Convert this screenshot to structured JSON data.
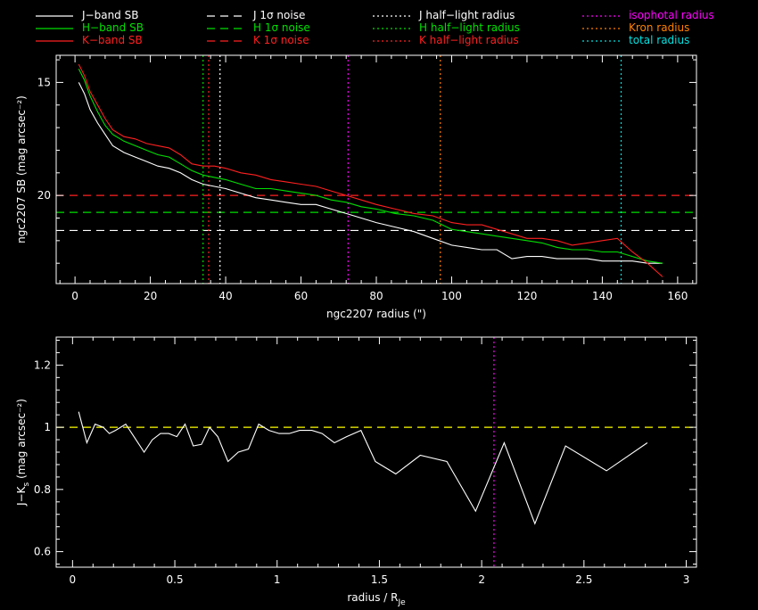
{
  "colors": {
    "background": "#000000",
    "axes": "#ffffff",
    "J": "#ffffff",
    "H": "#00e000",
    "K": "#ff2020",
    "yellow": "#ffff00",
    "magenta": "#ff00ff",
    "orange": "#ff8000",
    "cyan": "#00e0e0"
  },
  "legend": [
    {
      "label": "J−band SB",
      "color": "#ffffff",
      "style": "solid"
    },
    {
      "label": "H−band SB",
      "color": "#00e000",
      "style": "solid"
    },
    {
      "label": "K−band SB",
      "color": "#ff2020",
      "style": "solid"
    },
    {
      "label": "J 1σ noise",
      "color": "#ffffff",
      "style": "dashed"
    },
    {
      "label": "H 1σ noise",
      "color": "#00e000",
      "style": "dashed"
    },
    {
      "label": "K 1σ noise",
      "color": "#ff2020",
      "style": "dashed"
    },
    {
      "label": "J half−light radius",
      "color": "#ffffff",
      "style": "dotted"
    },
    {
      "label": "H half−light radius",
      "color": "#00e000",
      "style": "dotted"
    },
    {
      "label": "K half−light radius",
      "color": "#ff2020",
      "style": "dotted"
    },
    {
      "label": "isophotal radius",
      "color": "#ff00ff",
      "style": "dotted"
    },
    {
      "label": "Kron radius",
      "color": "#ff8000",
      "style": "dotted"
    },
    {
      "label": "total radius",
      "color": "#00e0e0",
      "style": "dotted"
    }
  ],
  "chart_data": [
    {
      "type": "line",
      "xlabel": "ngc2207 radius (\")",
      "ylabel": "ngc2207 SB (mag arcsec⁻²)",
      "xlim": [
        -5,
        165
      ],
      "ylim": [
        23.9,
        13.8
      ],
      "y_inverted": true,
      "xticks": [
        0,
        20,
        40,
        60,
        80,
        100,
        120,
        140,
        160
      ],
      "yticks": [
        15,
        20
      ],
      "series": [
        {
          "key": "J",
          "color": "#ffffff",
          "x": [
            1,
            2.5,
            4,
            6,
            8,
            10,
            13,
            16,
            19,
            22,
            25,
            28,
            31,
            34,
            37,
            40,
            44,
            48,
            52,
            56,
            60,
            64,
            68,
            72,
            76,
            80,
            85,
            90,
            95,
            100,
            104,
            108,
            112,
            116,
            120,
            124,
            128,
            132,
            136,
            140,
            144,
            148,
            152,
            156
          ],
          "y": [
            15.0,
            15.5,
            16.2,
            16.8,
            17.3,
            17.8,
            18.1,
            18.3,
            18.5,
            18.7,
            18.8,
            19.0,
            19.3,
            19.5,
            19.6,
            19.7,
            19.9,
            20.1,
            20.2,
            20.3,
            20.4,
            20.4,
            20.6,
            20.8,
            21.0,
            21.2,
            21.4,
            21.6,
            21.9,
            22.2,
            22.3,
            22.4,
            22.4,
            22.8,
            22.7,
            22.7,
            22.8,
            22.8,
            22.8,
            22.9,
            22.9,
            22.9,
            23.0,
            23.0
          ]
        },
        {
          "key": "H",
          "color": "#00e000",
          "x": [
            1,
            2.5,
            4,
            6,
            8,
            10,
            13,
            16,
            19,
            22,
            25,
            28,
            31,
            34,
            37,
            40,
            44,
            48,
            52,
            56,
            60,
            64,
            68,
            72,
            76,
            80,
            85,
            90,
            95,
            100,
            104,
            108,
            112,
            116,
            120,
            124,
            128,
            132,
            136,
            140,
            144,
            148,
            152,
            156
          ],
          "y": [
            14.4,
            14.9,
            15.6,
            16.3,
            16.9,
            17.3,
            17.6,
            17.8,
            18.0,
            18.2,
            18.3,
            18.6,
            18.9,
            19.1,
            19.2,
            19.3,
            19.5,
            19.7,
            19.7,
            19.8,
            19.9,
            20.0,
            20.2,
            20.3,
            20.5,
            20.6,
            20.8,
            20.9,
            21.1,
            21.5,
            21.6,
            21.7,
            21.8,
            21.9,
            22.0,
            22.1,
            22.3,
            22.4,
            22.4,
            22.5,
            22.5,
            22.7,
            22.9,
            23.0
          ]
        },
        {
          "key": "K",
          "color": "#ff2020",
          "x": [
            1,
            2.5,
            4,
            6,
            8,
            10,
            13,
            16,
            19,
            22,
            25,
            28,
            31,
            34,
            37,
            40,
            44,
            48,
            52,
            56,
            60,
            64,
            68,
            72,
            76,
            80,
            85,
            90,
            95,
            100,
            104,
            108,
            112,
            116,
            120,
            124,
            128,
            132,
            136,
            140,
            144,
            148,
            152,
            156
          ],
          "y": [
            14.2,
            14.7,
            15.4,
            16.0,
            16.6,
            17.1,
            17.4,
            17.5,
            17.7,
            17.8,
            17.9,
            18.2,
            18.6,
            18.7,
            18.7,
            18.8,
            19.0,
            19.1,
            19.3,
            19.4,
            19.5,
            19.6,
            19.8,
            20.0,
            20.2,
            20.4,
            20.6,
            20.8,
            20.9,
            21.2,
            21.3,
            21.3,
            21.5,
            21.7,
            21.9,
            21.9,
            22.0,
            22.2,
            22.1,
            22.0,
            21.9,
            22.5,
            23.0,
            23.6
          ]
        }
      ],
      "hlines": [
        {
          "y": 20.0,
          "color": "#ff2020",
          "style": "dashed"
        },
        {
          "y": 20.75,
          "color": "#00e000",
          "style": "dashed"
        },
        {
          "y": 21.55,
          "color": "#ffffff",
          "style": "dashed"
        }
      ],
      "vlines": [
        {
          "x": 34,
          "color": "#00e000"
        },
        {
          "x": 35.5,
          "color": "#ff2020"
        },
        {
          "x": 38.5,
          "color": "#ffffff"
        },
        {
          "x": 72.5,
          "color": "#ff00ff"
        },
        {
          "x": 97,
          "color": "#ff8000"
        },
        {
          "x": 145,
          "color": "#00e0e0"
        }
      ]
    },
    {
      "type": "line",
      "xlabel": "radius / R",
      "xlabel_sub": "Je",
      "ylabel": "J−K",
      "ylabel_sub": "s",
      "ylabel_rest": " (mag arcsec⁻²)",
      "xlim": [
        -0.08,
        3.05
      ],
      "ylim": [
        0.55,
        1.29
      ],
      "xticks": [
        0,
        0.5,
        1,
        1.5,
        2,
        2.5,
        3
      ],
      "xticklabels": [
        "0",
        "0.5",
        "1",
        "1.5",
        "2",
        "2.5",
        "3"
      ],
      "yticks": [
        0.6,
        0.8,
        1,
        1.2
      ],
      "yticklabels": [
        "0.6",
        "0.8",
        "1",
        "1.2"
      ],
      "series": [
        {
          "key": "J-K",
          "color": "#ffffff",
          "x": [
            0.03,
            0.07,
            0.11,
            0.15,
            0.18,
            0.21,
            0.26,
            0.3,
            0.35,
            0.39,
            0.43,
            0.47,
            0.51,
            0.55,
            0.59,
            0.63,
            0.67,
            0.71,
            0.76,
            0.81,
            0.86,
            0.91,
            0.96,
            1.01,
            1.06,
            1.11,
            1.17,
            1.22,
            1.28,
            1.34,
            1.41,
            1.48,
            1.58,
            1.7,
            1.83,
            1.97,
            2.11,
            2.26,
            2.41,
            2.61,
            2.81
          ],
          "y": [
            1.05,
            0.95,
            1.01,
            1.0,
            0.98,
            0.99,
            1.01,
            0.97,
            0.92,
            0.96,
            0.98,
            0.98,
            0.97,
            1.01,
            0.94,
            0.945,
            1.0,
            0.97,
            0.89,
            0.92,
            0.93,
            1.01,
            0.99,
            0.98,
            0.98,
            0.99,
            0.99,
            0.98,
            0.95,
            0.97,
            0.99,
            0.89,
            0.85,
            0.91,
            0.89,
            0.73,
            0.95,
            0.69,
            0.94,
            0.86,
            0.95
          ]
        }
      ],
      "hlines": [
        {
          "y": 1.0,
          "color": "#ffff00",
          "style": "dashed"
        }
      ],
      "vlines": [
        {
          "x": 2.06,
          "color": "#ff00ff"
        }
      ]
    }
  ]
}
